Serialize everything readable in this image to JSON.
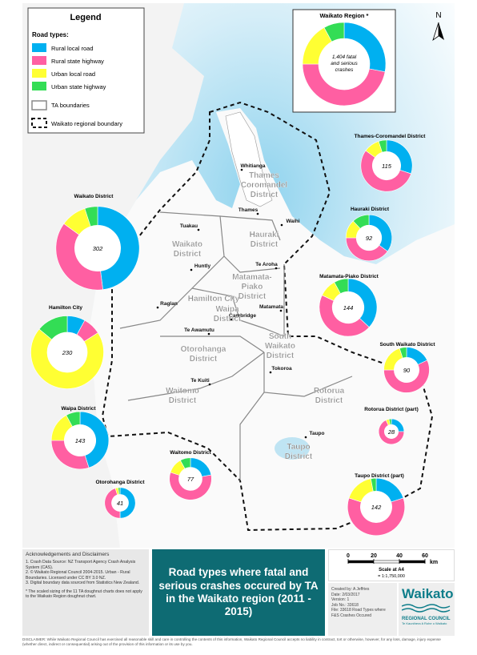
{
  "legend": {
    "title": "Legend",
    "subtitle": "Road types:",
    "road_types": [
      {
        "name": "Rural local road",
        "color": "#00b0f0"
      },
      {
        "name": "Rural state highway",
        "color": "#ff5fa2"
      },
      {
        "name": "Urban local road",
        "color": "#ffff33"
      },
      {
        "name": "Urban state highway",
        "color": "#33dd55"
      }
    ],
    "boundaries": [
      "TA boundaries",
      "Waikato regional boundary"
    ]
  },
  "north": "N",
  "region": {
    "title": "Waikato Region *",
    "total_lines": [
      "1,404 fatal",
      "and serious",
      "crashes"
    ],
    "shares": [
      28,
      47,
      17,
      8
    ]
  },
  "districts": [
    {
      "name": "Thames-Coromandel District",
      "total": 115,
      "shares": [
        30,
        55,
        10,
        5
      ]
    },
    {
      "name": "Hauraki District",
      "total": 92,
      "shares": [
        35,
        40,
        13,
        12
      ]
    },
    {
      "name": "Matamata-Piako District",
      "total": 144,
      "shares": [
        37,
        45,
        10,
        8
      ]
    },
    {
      "name": "South Waikato District",
      "total": 90,
      "shares": [
        18,
        57,
        20,
        5
      ]
    },
    {
      "name": "Rotorua District (part)",
      "total": 28,
      "shares": [
        25,
        68,
        4,
        3
      ]
    },
    {
      "name": "Taupo District (part)",
      "total": 142,
      "shares": [
        20,
        60,
        17,
        3
      ]
    },
    {
      "name": "Waitomo District",
      "total": 77,
      "shares": [
        22,
        58,
        12,
        8
      ]
    },
    {
      "name": "Otorohanga District",
      "total": 41,
      "shares": [
        50,
        45,
        3,
        2
      ]
    },
    {
      "name": "Waipa District",
      "total": 143,
      "shares": [
        45,
        30,
        17,
        8
      ]
    },
    {
      "name": "Hamilton City",
      "total": 230,
      "shares": [
        8,
        8,
        70,
        14
      ]
    },
    {
      "name": "Waikato District",
      "total": 302,
      "shares": [
        48,
        37,
        10,
        5
      ]
    }
  ],
  "towns": [
    "Whitianga",
    "Thames",
    "Waihi",
    "Tuakau",
    "Huntly",
    "Te Aroha",
    "Raglan",
    "Matamata",
    "Cambridge",
    "Te Awamutu",
    "Tokoroa",
    "Te Kuiti",
    "Taupo"
  ],
  "ta_labels": [
    [
      "Thames",
      "Coromandel",
      "District"
    ],
    [
      "Hauraki",
      "District"
    ],
    [
      "Waikato",
      "District"
    ],
    [
      "Hamilton City"
    ],
    [
      "Matamata-",
      "Piako",
      "District"
    ],
    [
      "Waipa",
      "District"
    ],
    [
      "Otorohanga",
      "District"
    ],
    [
      "South",
      "Waikato",
      "District"
    ],
    [
      "Waitomo",
      "District"
    ],
    [
      "Rotorua",
      "District"
    ],
    [
      "Taupo",
      "District"
    ]
  ],
  "acknowledgements": {
    "title": "Acknowledgements and Disclaimers",
    "items": [
      "1. Crash Data Source: NZ Transport Agency Crash Analysis System (CAS).",
      "2. © Waikato Regional Council 2004-2015. Urban - Rural Boundaries. Licensed under CC BY 3.0 NZ.",
      "3. Digital boundary data sourced from Statistics New Zealand."
    ],
    "note": "* The scaled sizing of the 11 TA doughnut charts does not apply to the Waikato Region doughnut chart."
  },
  "title": "Road types where fatal and serious crashes occured by TA in the Waikato region (2011 - 2015)",
  "scale": {
    "ticks": [
      0,
      20,
      40,
      60
    ],
    "unit": "km",
    "label": "Scale at A4",
    "ratio": "= 1:1,750,000"
  },
  "credits": [
    "Created by: A Jeffries",
    "Date: 2/03/2017",
    "Version: 1",
    "Job No.: 33618",
    "File: 33618 Road Types where F&S Crashes Occured"
  ],
  "logo": {
    "name": "Waikato",
    "subtitle": "REGIONAL COUNCIL",
    "tagline": "Te Kaunihera ā Rohe o Waikato"
  },
  "disclaimer": "DISCLAIMER: While Waikato Regional Council has exercised all reasonable skill and care in controlling the contents of this information, Waikato Regional Council accepts no liability in contract, tort or otherwise, however, for any loss, damage, injury expense (whether direct, indirect or consequential) arising out of the provision of this information or its use by you."
}
